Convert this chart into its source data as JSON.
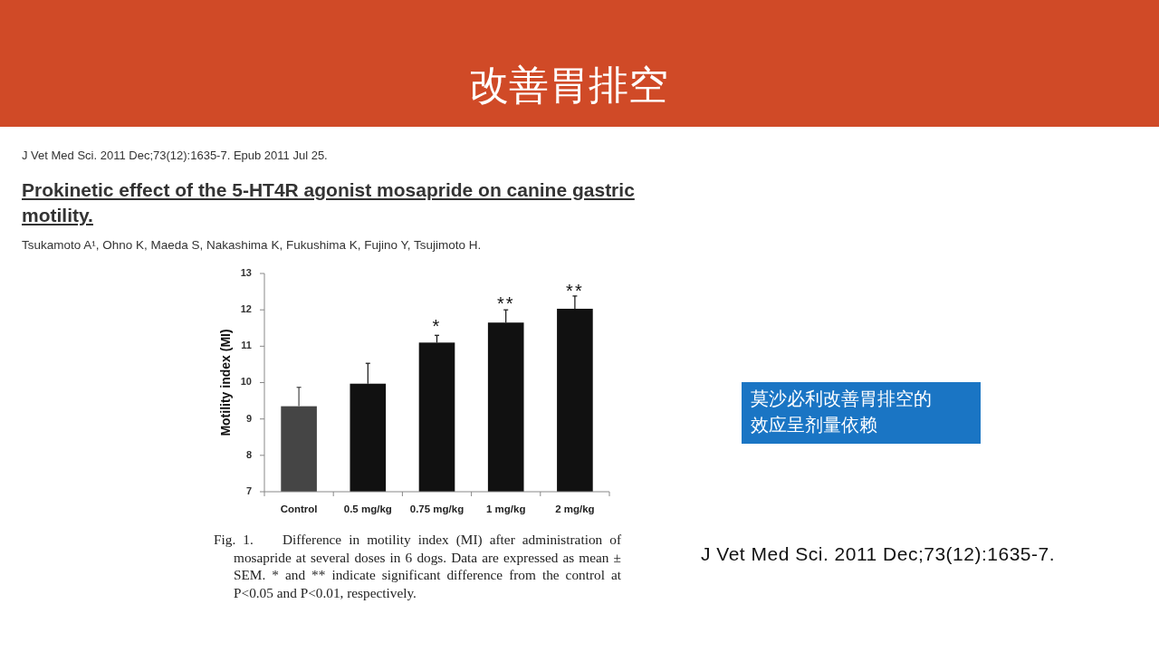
{
  "chart_data": {
    "type": "bar",
    "title": "改善胃排空",
    "subtitle": "Prokinetic effect of the 5-HT4R agonist mosapride on canine gastric motility.",
    "ylabel": "Motility index (MI)",
    "categories": [
      "Control",
      "0.5 mg/kg",
      "0.75 mg/kg",
      "1 mg/kg",
      "2 mg/kg"
    ],
    "values": [
      9.35,
      9.97,
      11.1,
      11.65,
      12.03
    ],
    "colors": [
      "#454545",
      "#111111",
      "#111111",
      "#111111",
      "#111111"
    ],
    "errors": [
      [
        9.35,
        9.87
      ],
      [
        9.97,
        10.53
      ],
      [
        11.1,
        11.3
      ],
      [
        11.65,
        12.0
      ],
      [
        12.03,
        12.38
      ]
    ],
    "ylim": [
      7,
      13
    ],
    "yticks": [
      7,
      8,
      9,
      10,
      11,
      12,
      13
    ],
    "annotations": [
      "J Vet Med Sci. 2011 Dec;73(12):1635-7. Epub 2011 Jul 25.",
      "Tsukamoto A¹, Ohno K, Maeda S, Nakashima K, Fukushima K, Fujino Y, Tsujimoto H.",
      "Fig. 1.    Difference in motility index (MI) after administration of mosapride at several doses in 6 dogs. Data are expressed as mean ± SEM. * and ** indicate significant difference from the control at P<0.05 and P<0.01, respectively.",
      "莫沙必利改善胃排空的效应呈剂量依赖",
      "J Vet Med Sci. 2011 Dec;73(12):1635-7.",
      "*",
      "**",
      "**"
    ]
  }
}
